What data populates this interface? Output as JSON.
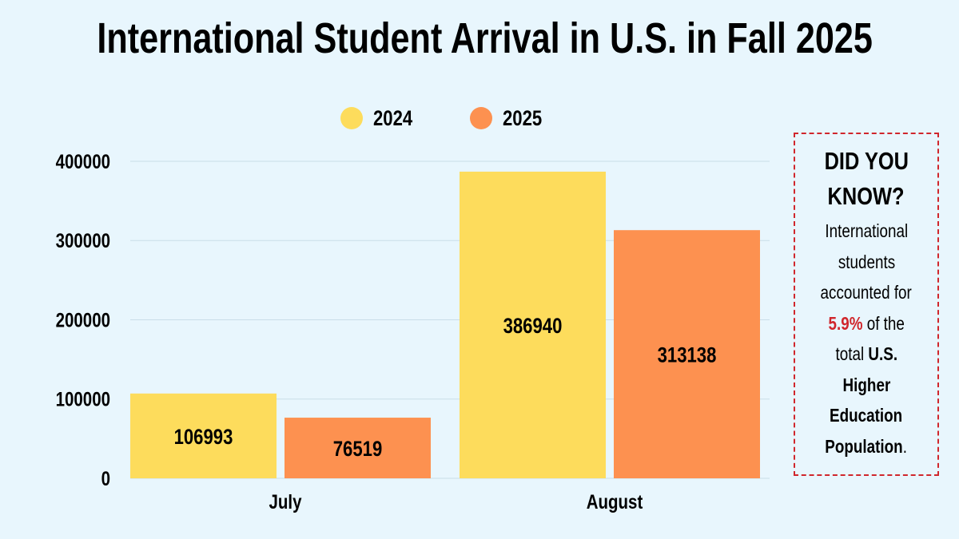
{
  "title": "International Student Arrival in U.S. in Fall 2025",
  "chart_data": {
    "type": "bar",
    "title": "International Student Arrival in U.S. in Fall 2025",
    "categories": [
      "July",
      "August"
    ],
    "series": [
      {
        "name": "2024",
        "color": "#fddc5c",
        "values": [
          106993,
          386940
        ]
      },
      {
        "name": "2025",
        "color": "#fd9150",
        "values": [
          76519,
          313138
        ]
      }
    ],
    "yticks": [
      "0",
      "100000",
      "200000",
      "300000",
      "400000"
    ],
    "ylim": [
      0,
      400000
    ],
    "xlabel": "",
    "ylabel": "",
    "grid": true,
    "legend": "top",
    "data_labels": true
  },
  "callout": {
    "heading_1": "DID YOU",
    "heading_2": "KNOW?",
    "lines": [
      "International",
      "students",
      "accounted for"
    ],
    "highlight": "5.9%",
    "after_highlight": " of the",
    "total": "total ",
    "bold_1": "U.S.",
    "bold_2": "Higher",
    "bold_3": "Education",
    "bold_4": "Population",
    "period": ".",
    "border_color": "#d0262c",
    "highlight_color": "#d0262c"
  }
}
